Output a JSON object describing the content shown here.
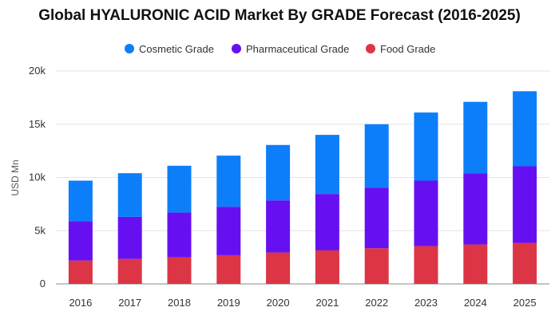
{
  "chart_data": {
    "type": "bar",
    "stacked": true,
    "title": "Global HYALURONIC ACID Market By GRADE Forecast (2016-2025)",
    "xlabel": "",
    "ylabel": "USD Mn",
    "ylim": [
      0,
      20000
    ],
    "y_ticks": [
      0,
      5000,
      10000,
      15000,
      20000
    ],
    "y_tick_labels": [
      "0",
      "5k",
      "10k",
      "15k",
      "20k"
    ],
    "grid": true,
    "legend_position": "top",
    "categories": [
      "2016",
      "2017",
      "2018",
      "2019",
      "2020",
      "2021",
      "2022",
      "2023",
      "2024",
      "2025"
    ],
    "series": [
      {
        "name": "Food Grade",
        "color": "#dc3545",
        "values": [
          2200,
          2350,
          2500,
          2700,
          2950,
          3150,
          3350,
          3550,
          3700,
          3850
        ]
      },
      {
        "name": "Pharmaceutical Grade",
        "color": "#6610f2",
        "values": [
          3700,
          3950,
          4200,
          4550,
          4900,
          5300,
          5700,
          6150,
          6700,
          7200
        ]
      },
      {
        "name": "Cosmetic Grade",
        "color": "#0d7ef9",
        "values": [
          3800,
          4100,
          4400,
          4800,
          5200,
          5550,
          5950,
          6400,
          6700,
          7050
        ]
      }
    ],
    "legend_order": [
      "Cosmetic Grade",
      "Pharmaceutical Grade",
      "Food Grade"
    ]
  }
}
